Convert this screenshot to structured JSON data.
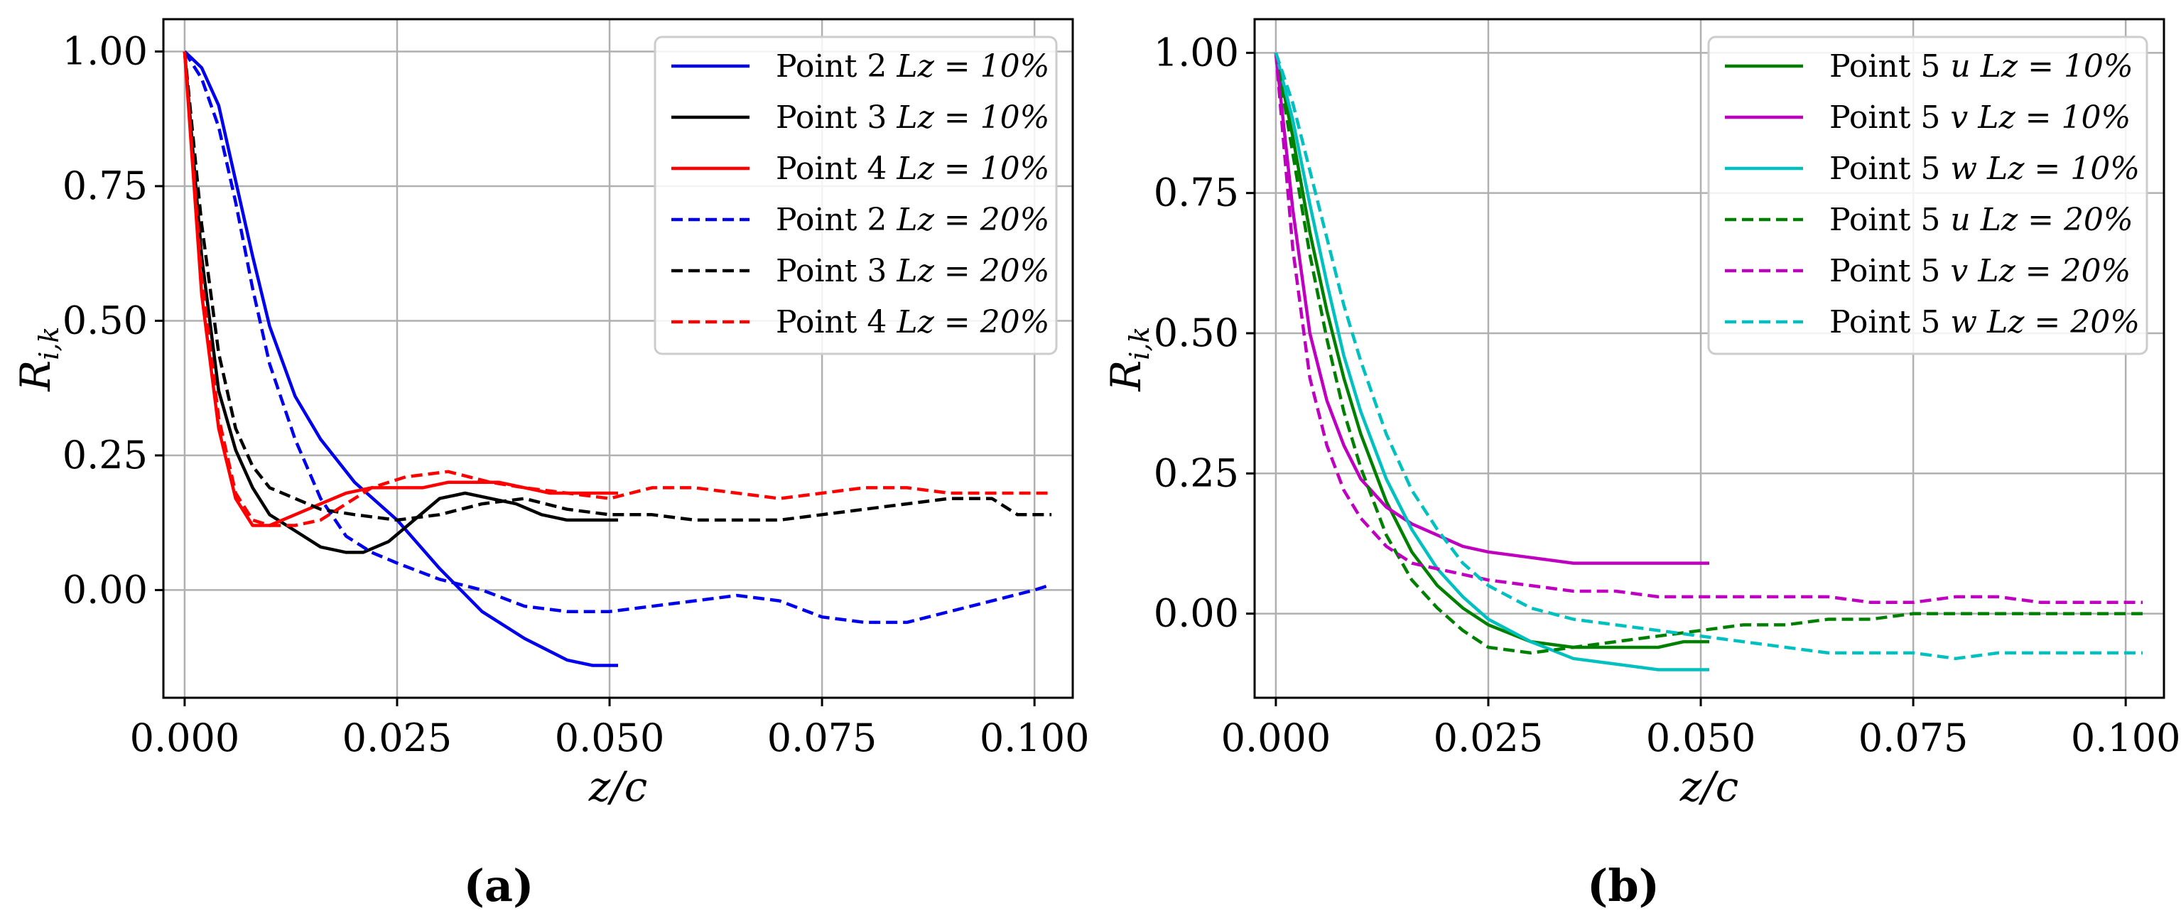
{
  "chart_data": [
    {
      "panel_label": "(a)",
      "type": "line",
      "xlabel": "z/c",
      "ylabel": "R_{i,k}",
      "ylabel_main": "R",
      "ylabel_sub": "i,k",
      "xlim": [
        -0.0025,
        0.1045
      ],
      "ylim": [
        -0.2,
        1.06
      ],
      "xticks": [
        0.0,
        0.025,
        0.05,
        0.075,
        0.1
      ],
      "xtick_labels": [
        "0.000",
        "0.025",
        "0.050",
        "0.075",
        "0.100"
      ],
      "yticks": [
        0.0,
        0.25,
        0.5,
        0.75,
        1.0
      ],
      "ytick_labels": [
        "0.00",
        "0.25",
        "0.50",
        "0.75",
        "1.00"
      ],
      "grid": true,
      "legend_position": "top-right",
      "series": [
        {
          "name": "Point 2 Lz = 10%",
          "legend_prefix": "Point 2",
          "legend_var": "Lz = 10%",
          "color": "#0000ee",
          "dash": "solid",
          "x": [
            0,
            0.002,
            0.004,
            0.006,
            0.008,
            0.01,
            0.013,
            0.016,
            0.02,
            0.025,
            0.03,
            0.035,
            0.04,
            0.045,
            0.048,
            0.051
          ],
          "y": [
            1.0,
            0.97,
            0.9,
            0.76,
            0.62,
            0.49,
            0.36,
            0.28,
            0.2,
            0.13,
            0.04,
            -0.04,
            -0.09,
            -0.13,
            -0.14,
            -0.14
          ]
        },
        {
          "name": "Point 3 Lz = 10%",
          "legend_prefix": "Point 3",
          "legend_var": "Lz = 10%",
          "color": "#000000",
          "dash": "solid",
          "x": [
            0,
            0.002,
            0.004,
            0.006,
            0.008,
            0.01,
            0.013,
            0.016,
            0.019,
            0.021,
            0.024,
            0.027,
            0.03,
            0.033,
            0.036,
            0.039,
            0.042,
            0.045,
            0.048,
            0.051
          ],
          "y": [
            1.0,
            0.62,
            0.37,
            0.26,
            0.19,
            0.14,
            0.11,
            0.08,
            0.07,
            0.07,
            0.09,
            0.13,
            0.17,
            0.18,
            0.17,
            0.16,
            0.14,
            0.13,
            0.13,
            0.13
          ]
        },
        {
          "name": "Point 4 Lz = 10%",
          "legend_prefix": "Point 4",
          "legend_var": "Lz = 10%",
          "color": "#ff0000",
          "dash": "solid",
          "x": [
            0,
            0.002,
            0.004,
            0.006,
            0.008,
            0.01,
            0.013,
            0.016,
            0.019,
            0.022,
            0.025,
            0.028,
            0.031,
            0.034,
            0.037,
            0.04,
            0.043,
            0.046,
            0.049,
            0.051
          ],
          "y": [
            1.0,
            0.55,
            0.3,
            0.17,
            0.12,
            0.12,
            0.14,
            0.16,
            0.18,
            0.19,
            0.19,
            0.19,
            0.2,
            0.2,
            0.2,
            0.19,
            0.18,
            0.18,
            0.18,
            0.18
          ]
        },
        {
          "name": "Point 2 Lz = 20%",
          "legend_prefix": "Point 2",
          "legend_var": "Lz = 20%",
          "color": "#0000ee",
          "dash": "dashed",
          "x": [
            0,
            0.002,
            0.004,
            0.006,
            0.008,
            0.01,
            0.013,
            0.016,
            0.019,
            0.022,
            0.025,
            0.03,
            0.035,
            0.04,
            0.045,
            0.05,
            0.055,
            0.06,
            0.065,
            0.07,
            0.075,
            0.08,
            0.085,
            0.09,
            0.095,
            0.1,
            0.102
          ],
          "y": [
            1.0,
            0.95,
            0.86,
            0.72,
            0.56,
            0.42,
            0.28,
            0.17,
            0.1,
            0.07,
            0.05,
            0.02,
            0.0,
            -0.03,
            -0.04,
            -0.04,
            -0.03,
            -0.02,
            -0.01,
            -0.02,
            -0.05,
            -0.06,
            -0.06,
            -0.04,
            -0.02,
            0.0,
            0.01
          ]
        },
        {
          "name": "Point 3 Lz = 20%",
          "legend_prefix": "Point 3",
          "legend_var": "Lz = 20%",
          "color": "#000000",
          "dash": "dashed",
          "x": [
            0,
            0.002,
            0.004,
            0.006,
            0.008,
            0.01,
            0.013,
            0.016,
            0.02,
            0.025,
            0.03,
            0.035,
            0.04,
            0.045,
            0.05,
            0.055,
            0.06,
            0.065,
            0.07,
            0.075,
            0.08,
            0.085,
            0.09,
            0.095,
            0.098,
            0.102
          ],
          "y": [
            1.0,
            0.68,
            0.44,
            0.3,
            0.23,
            0.19,
            0.17,
            0.15,
            0.14,
            0.13,
            0.14,
            0.16,
            0.17,
            0.15,
            0.14,
            0.14,
            0.13,
            0.13,
            0.13,
            0.14,
            0.15,
            0.16,
            0.17,
            0.17,
            0.14,
            0.14
          ]
        },
        {
          "name": "Point 4 Lz = 20%",
          "legend_prefix": "Point 4",
          "legend_var": "Lz = 20%",
          "color": "#ff0000",
          "dash": "dashed",
          "x": [
            0,
            0.002,
            0.004,
            0.006,
            0.008,
            0.01,
            0.013,
            0.016,
            0.019,
            0.022,
            0.026,
            0.031,
            0.036,
            0.04,
            0.045,
            0.05,
            0.055,
            0.06,
            0.065,
            0.07,
            0.075,
            0.08,
            0.085,
            0.09,
            0.095,
            0.1,
            0.102
          ],
          "y": [
            1.0,
            0.58,
            0.32,
            0.18,
            0.13,
            0.12,
            0.12,
            0.13,
            0.16,
            0.19,
            0.21,
            0.22,
            0.2,
            0.19,
            0.18,
            0.17,
            0.19,
            0.19,
            0.18,
            0.17,
            0.18,
            0.19,
            0.19,
            0.18,
            0.18,
            0.18,
            0.18
          ]
        }
      ]
    },
    {
      "panel_label": "(b)",
      "type": "line",
      "xlabel": "z/c",
      "ylabel": "R_{i,k}",
      "ylabel_main": "R",
      "ylabel_sub": "i,k",
      "xlim": [
        -0.0025,
        0.1045
      ],
      "ylim": [
        -0.15,
        1.06
      ],
      "xticks": [
        0.0,
        0.025,
        0.05,
        0.075,
        0.1
      ],
      "xtick_labels": [
        "0.000",
        "0.025",
        "0.050",
        "0.075",
        "0.100"
      ],
      "yticks": [
        0.0,
        0.25,
        0.5,
        0.75,
        1.0
      ],
      "ytick_labels": [
        "0.00",
        "0.25",
        "0.50",
        "0.75",
        "1.00"
      ],
      "grid": true,
      "legend_position": "top-right",
      "series": [
        {
          "name": "Point 5 u Lz = 10%",
          "legend_prefix": "Point 5",
          "legend_var": "u Lz = 10%",
          "color": "#008000",
          "dash": "solid",
          "x": [
            0,
            0.002,
            0.004,
            0.006,
            0.008,
            0.01,
            0.013,
            0.016,
            0.019,
            0.022,
            0.025,
            0.03,
            0.035,
            0.04,
            0.045,
            0.048,
            0.051
          ],
          "y": [
            1.0,
            0.85,
            0.68,
            0.54,
            0.42,
            0.32,
            0.2,
            0.11,
            0.05,
            0.01,
            -0.02,
            -0.05,
            -0.06,
            -0.06,
            -0.06,
            -0.05,
            -0.05
          ]
        },
        {
          "name": "Point 5 v Lz = 10%",
          "legend_prefix": "Point 5",
          "legend_var": "v Lz = 10%",
          "color": "#c000c0",
          "dash": "solid",
          "x": [
            0,
            0.002,
            0.004,
            0.006,
            0.008,
            0.01,
            0.013,
            0.016,
            0.019,
            0.022,
            0.025,
            0.03,
            0.035,
            0.04,
            0.045,
            0.048,
            0.051
          ],
          "y": [
            1.0,
            0.72,
            0.5,
            0.38,
            0.3,
            0.24,
            0.19,
            0.16,
            0.14,
            0.12,
            0.11,
            0.1,
            0.09,
            0.09,
            0.09,
            0.09,
            0.09
          ]
        },
        {
          "name": "Point 5 w Lz = 10%",
          "legend_prefix": "Point 5",
          "legend_var": "w Lz = 10%",
          "color": "#00c0c0",
          "dash": "solid",
          "x": [
            0,
            0.002,
            0.004,
            0.006,
            0.008,
            0.01,
            0.013,
            0.016,
            0.019,
            0.022,
            0.025,
            0.03,
            0.035,
            0.04,
            0.045,
            0.048,
            0.051
          ],
          "y": [
            1.0,
            0.88,
            0.73,
            0.59,
            0.46,
            0.36,
            0.24,
            0.15,
            0.08,
            0.03,
            -0.01,
            -0.05,
            -0.08,
            -0.09,
            -0.1,
            -0.1,
            -0.1
          ]
        },
        {
          "name": "Point 5 u Lz = 20%",
          "legend_prefix": "Point 5",
          "legend_var": "u Lz = 20%",
          "color": "#008000",
          "dash": "dashed",
          "x": [
            0,
            0.002,
            0.004,
            0.006,
            0.008,
            0.01,
            0.013,
            0.016,
            0.019,
            0.022,
            0.025,
            0.03,
            0.035,
            0.04,
            0.045,
            0.05,
            0.055,
            0.06,
            0.065,
            0.07,
            0.075,
            0.08,
            0.085,
            0.09,
            0.095,
            0.1,
            0.102
          ],
          "y": [
            1.0,
            0.82,
            0.64,
            0.49,
            0.36,
            0.26,
            0.14,
            0.06,
            0.01,
            -0.03,
            -0.06,
            -0.07,
            -0.06,
            -0.05,
            -0.04,
            -0.03,
            -0.02,
            -0.02,
            -0.01,
            -0.01,
            0.0,
            0.0,
            0.0,
            0.0,
            0.0,
            0.0,
            0.0
          ]
        },
        {
          "name": "Point 5 v Lz = 20%",
          "legend_prefix": "Point 5",
          "legend_var": "v Lz = 20%",
          "color": "#c000c0",
          "dash": "dashed",
          "x": [
            0,
            0.002,
            0.004,
            0.006,
            0.008,
            0.01,
            0.013,
            0.016,
            0.019,
            0.022,
            0.025,
            0.03,
            0.035,
            0.04,
            0.045,
            0.05,
            0.055,
            0.06,
            0.065,
            0.07,
            0.075,
            0.08,
            0.085,
            0.09,
            0.095,
            0.1,
            0.102
          ],
          "y": [
            1.0,
            0.65,
            0.42,
            0.3,
            0.22,
            0.17,
            0.12,
            0.09,
            0.08,
            0.07,
            0.06,
            0.05,
            0.04,
            0.04,
            0.03,
            0.03,
            0.03,
            0.03,
            0.03,
            0.02,
            0.02,
            0.03,
            0.03,
            0.02,
            0.02,
            0.02,
            0.02
          ]
        },
        {
          "name": "Point 5 w Lz = 20%",
          "legend_prefix": "Point 5",
          "legend_var": "w Lz = 20%",
          "color": "#00c0c0",
          "dash": "dashed",
          "x": [
            0,
            0.002,
            0.004,
            0.006,
            0.008,
            0.01,
            0.013,
            0.016,
            0.019,
            0.022,
            0.025,
            0.03,
            0.035,
            0.04,
            0.045,
            0.05,
            0.055,
            0.06,
            0.065,
            0.07,
            0.075,
            0.08,
            0.085,
            0.09,
            0.095,
            0.1,
            0.102
          ],
          "y": [
            1.0,
            0.91,
            0.79,
            0.67,
            0.55,
            0.45,
            0.32,
            0.22,
            0.15,
            0.09,
            0.05,
            0.01,
            -0.01,
            -0.02,
            -0.03,
            -0.04,
            -0.05,
            -0.06,
            -0.07,
            -0.07,
            -0.07,
            -0.08,
            -0.07,
            -0.07,
            -0.07,
            -0.07,
            -0.07
          ]
        }
      ]
    }
  ]
}
